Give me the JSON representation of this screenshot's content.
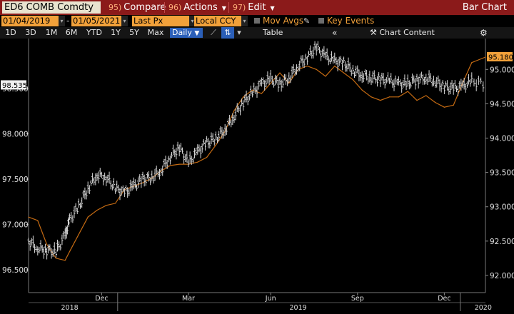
{
  "title_bar": {
    "ticker": "ED6 COMB Comdty",
    "compare_num": "95)",
    "compare_label": "Compare",
    "actions_num": "96)",
    "actions_label": "Actions",
    "edit_num": "97)",
    "edit_label": "Edit",
    "chart_type": "Bar Chart"
  },
  "toolbar": {
    "start_date": "01/04/2019",
    "date_separator": "-",
    "end_date": "01/05/2021",
    "price_field": "Last Px",
    "currency": "Local CCY",
    "mov_avgs": "Mov Avgs",
    "key_events": "Key Events"
  },
  "range_bar": {
    "ranges": [
      "1D",
      "3D",
      "1M",
      "6M",
      "YTD",
      "1Y",
      "5Y",
      "Max"
    ],
    "frequency": "Daily",
    "table_label": "Table",
    "chart_content_label": "Chart Content"
  },
  "chart_data": {
    "type": "line",
    "left_axis": {
      "ticks": [
        "96.500",
        "97.000",
        "97.500",
        "98.000",
        "98.500"
      ],
      "last_value": "98.535"
    },
    "right_axis": {
      "ticks": [
        "92.000",
        "92.500",
        "93.000",
        "93.500",
        "94.000",
        "94.500",
        "95.000"
      ],
      "last_value": "95.180"
    },
    "x_ticks": [
      "Dec",
      "Mar",
      "Jun",
      "Sep",
      "Dec"
    ],
    "x_years": [
      "2018",
      "2019",
      "2020"
    ],
    "series": [
      {
        "axis": "left",
        "color": "#d8d8d8",
        "style": "bars",
        "x": [
          0.0,
          0.02,
          0.04,
          0.06,
          0.08,
          0.09,
          0.11,
          0.13,
          0.15,
          0.17,
          0.19,
          0.21,
          0.23,
          0.25,
          0.27,
          0.29,
          0.31,
          0.33,
          0.35,
          0.37,
          0.39,
          0.41,
          0.43,
          0.45,
          0.47,
          0.49,
          0.51,
          0.53,
          0.55,
          0.57,
          0.59,
          0.61,
          0.63,
          0.65,
          0.67,
          0.69,
          0.71,
          0.73,
          0.75,
          0.77,
          0.79,
          0.81,
          0.83,
          0.85,
          0.87,
          0.89,
          0.91,
          0.93,
          0.95,
          0.97,
          1.0
        ],
        "values": [
          96.82,
          96.74,
          96.72,
          96.7,
          96.88,
          97.05,
          97.2,
          97.4,
          97.55,
          97.52,
          97.4,
          97.35,
          97.42,
          97.5,
          97.52,
          97.6,
          97.75,
          97.85,
          97.68,
          97.8,
          97.9,
          97.95,
          98.05,
          98.2,
          98.35,
          98.45,
          98.55,
          98.6,
          98.55,
          98.62,
          98.75,
          98.85,
          98.95,
          98.85,
          98.8,
          98.78,
          98.7,
          98.65,
          98.62,
          98.6,
          98.58,
          98.55,
          98.55,
          98.6,
          98.62,
          98.58,
          98.52,
          98.5,
          98.52,
          98.58,
          98.55
        ]
      },
      {
        "axis": "right",
        "color": "#c46a12",
        "style": "line",
        "x": [
          0.0,
          0.02,
          0.04,
          0.06,
          0.08,
          0.09,
          0.11,
          0.13,
          0.15,
          0.17,
          0.19,
          0.21,
          0.23,
          0.25,
          0.27,
          0.29,
          0.31,
          0.33,
          0.35,
          0.37,
          0.39,
          0.41,
          0.43,
          0.45,
          0.47,
          0.49,
          0.51,
          0.53,
          0.55,
          0.57,
          0.59,
          0.61,
          0.63,
          0.65,
          0.67,
          0.69,
          0.71,
          0.73,
          0.75,
          0.77,
          0.79,
          0.81,
          0.83,
          0.85,
          0.87,
          0.89,
          0.91,
          0.93,
          0.95,
          0.97,
          1.0
        ],
        "values": [
          92.85,
          92.8,
          92.45,
          92.25,
          92.22,
          92.35,
          92.6,
          92.85,
          92.95,
          93.02,
          93.05,
          93.25,
          93.3,
          93.35,
          93.42,
          93.52,
          93.6,
          93.62,
          93.62,
          93.65,
          93.72,
          93.9,
          94.1,
          94.4,
          94.6,
          94.7,
          94.65,
          94.8,
          94.95,
          94.8,
          95.0,
          95.05,
          95.0,
          94.9,
          95.05,
          94.95,
          94.85,
          94.7,
          94.6,
          94.55,
          94.6,
          94.6,
          94.68,
          94.55,
          94.62,
          94.52,
          94.45,
          94.48,
          94.8,
          95.1,
          95.18
        ]
      }
    ]
  }
}
